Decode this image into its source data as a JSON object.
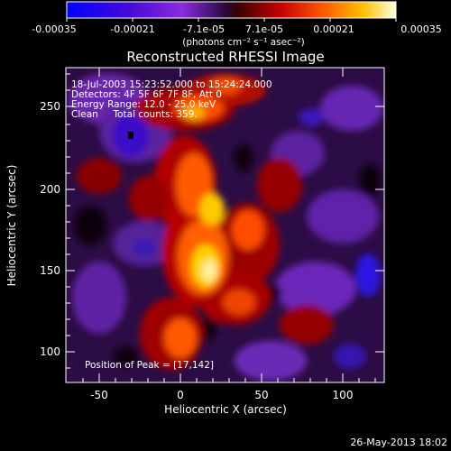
{
  "colorbar": {
    "tick_labels": [
      "-0.00035",
      "-0.00021",
      "-7.1e-05",
      "7.1e-05",
      "0.00021",
      "0.00035"
    ],
    "units_label": "(photons cm⁻² s⁻¹ asec⁻²)",
    "range": [
      -0.00035,
      0.00035
    ]
  },
  "title": "Reconstructed RHESSI Image",
  "info": {
    "line1": "18-Jul-2003 15:23:52.000 to 15:24:24.000",
    "line2": "Detectors: 4F 5F 6F 7F 8F, Att 0",
    "line3": "Energy Range: 12.0 - 25.0 keV",
    "line4": "Clean     Total counts: 359."
  },
  "peak_label": "Position of Peak = [17,142]",
  "x_axis": {
    "label": "Heliocentric X (arcsec)",
    "ticks": [
      "-50",
      "0",
      "50",
      "100"
    ],
    "range": [
      -70,
      125
    ]
  },
  "y_axis": {
    "label": "Heliocentric Y (arcsec)",
    "ticks": [
      "100",
      "150",
      "200",
      "250"
    ],
    "range": [
      83,
      280
    ]
  },
  "footer_date": "26-May-2013 18:02"
}
